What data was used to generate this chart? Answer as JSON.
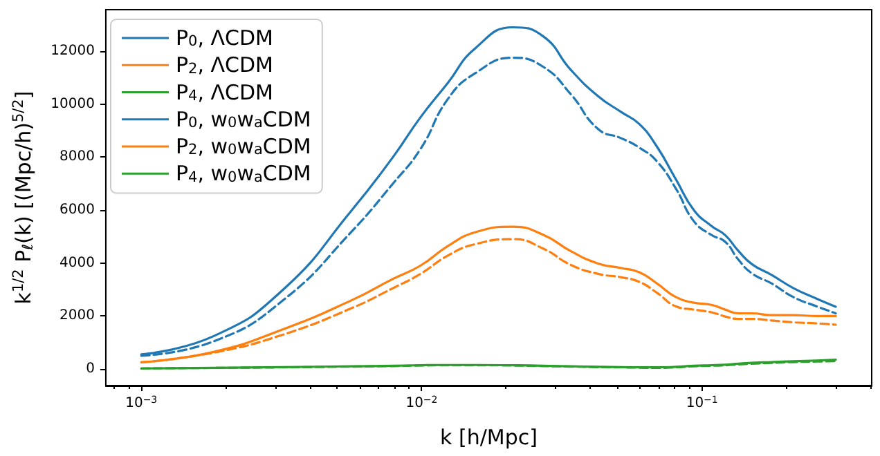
{
  "chart_data": {
    "type": "line",
    "xlabel": "k [h/Mpc]",
    "ylabel": "k$^{1/2}$ P$_{ℓ}$(k) [(Mpc/h)$^{5/2}$]",
    "log": "x",
    "grid": false,
    "legend": "top left",
    "marker": "none",
    "x": [
      0.001,
      0.00182,
      0.00321,
      0.00564,
      0.0079,
      0.0099,
      0.0124,
      0.0155,
      0.0212,
      0.0272,
      0.034,
      0.0426,
      0.0515,
      0.0597,
      0.069,
      0.0808,
      0.0935,
      0.108,
      0.121,
      0.135,
      0.151,
      0.177,
      0.212,
      0.257,
      0.3
    ],
    "xlim": [
      0.000747,
      0.403
    ],
    "xticks": [
      {
        "value": 0.001,
        "label": "10$^{−3}$"
      },
      {
        "value": 0.01,
        "label": "10$^{−2}$"
      },
      {
        "value": 0.1,
        "label": "10$^{−1}$"
      },
      {
        "value": 0.0008,
        "label": null
      },
      {
        "value": 0.0009,
        "label": null
      },
      {
        "value": 0.002,
        "label": null
      },
      {
        "value": 0.003,
        "label": null
      },
      {
        "value": 0.004,
        "label": null
      },
      {
        "value": 0.005,
        "label": null
      },
      {
        "value": 0.006,
        "label": null
      },
      {
        "value": 0.007,
        "label": null
      },
      {
        "value": 0.008,
        "label": null
      },
      {
        "value": 0.009,
        "label": null
      },
      {
        "value": 0.02,
        "label": null
      },
      {
        "value": 0.03,
        "label": null
      },
      {
        "value": 0.04,
        "label": null
      },
      {
        "value": 0.05,
        "label": null
      },
      {
        "value": 0.06,
        "label": null
      },
      {
        "value": 0.07,
        "label": null
      },
      {
        "value": 0.08,
        "label": null
      },
      {
        "value": 0.09,
        "label": null
      },
      {
        "value": 0.2,
        "label": null
      },
      {
        "value": 0.3,
        "label": null
      },
      {
        "value": 0.4,
        "label": null
      }
    ],
    "ylim": [
      -626,
      13565
    ],
    "yticks": [
      0,
      2000,
      4000,
      6000,
      8000,
      10000,
      12000
    ],
    "series": [
      {
        "name": "P$_{0}$, ΛCDM",
        "color": "#1f77b4",
        "line_style": "solid",
        "values": [
          550,
          1250,
          3000,
          6000,
          8000,
          9500,
          10800,
          12100,
          12900,
          12550,
          11300,
          10300,
          9700,
          9250,
          8400,
          7150,
          6000,
          5400,
          5050,
          4450,
          3950,
          3550,
          3050,
          2650,
          2350
        ]
      },
      {
        "name": "P$_{2}$, ΛCDM",
        "color": "#ff7f0e",
        "line_style": "solid",
        "values": [
          250,
          650,
          1500,
          2600,
          3400,
          3900,
          4640,
          5160,
          5370,
          5060,
          4450,
          3980,
          3810,
          3650,
          3230,
          2710,
          2500,
          2420,
          2240,
          2100,
          2100,
          2030,
          2030,
          2000,
          2000
        ]
      },
      {
        "name": "P$_{4}$, ΛCDM",
        "color": "#2ca02c",
        "line_style": "solid",
        "values": [
          20,
          40,
          70,
          100,
          120,
          140,
          150,
          150,
          140,
          120,
          100,
          80,
          70,
          60,
          60,
          80,
          120,
          140,
          160,
          200,
          230,
          260,
          290,
          320,
          350
        ]
      },
      {
        "name": "P$_{0}$, w$_{0}$w$_{a}$CDM",
        "color": "#1f77b4",
        "line_style": "dashed",
        "values": [
          500,
          1050,
          2600,
          5200,
          7000,
          8300,
          10190,
          11160,
          11750,
          11400,
          10380,
          9060,
          8710,
          8360,
          7840,
          6800,
          5580,
          5060,
          4800,
          4120,
          3600,
          3230,
          2710,
          2360,
          2100
        ]
      },
      {
        "name": "P$_{2}$, w$_{0}$w$_{a}$CDM",
        "color": "#ff7f0e",
        "line_style": "dashed",
        "values": [
          250,
          620,
          1300,
          2300,
          3050,
          3590,
          4280,
          4710,
          4900,
          4540,
          3930,
          3590,
          3460,
          3290,
          2880,
          2360,
          2240,
          2140,
          1980,
          1890,
          1890,
          1830,
          1760,
          1720,
          1670
        ]
      },
      {
        "name": "P$_{4}$, w$_{0}$w$_{a}$CDM",
        "color": "#2ca02c",
        "line_style": "dashed",
        "values": [
          20,
          40,
          60,
          90,
          110,
          130,
          140,
          140,
          130,
          110,
          90,
          70,
          60,
          50,
          40,
          60,
          100,
          120,
          140,
          170,
          200,
          230,
          260,
          280,
          300
        ]
      }
    ]
  }
}
